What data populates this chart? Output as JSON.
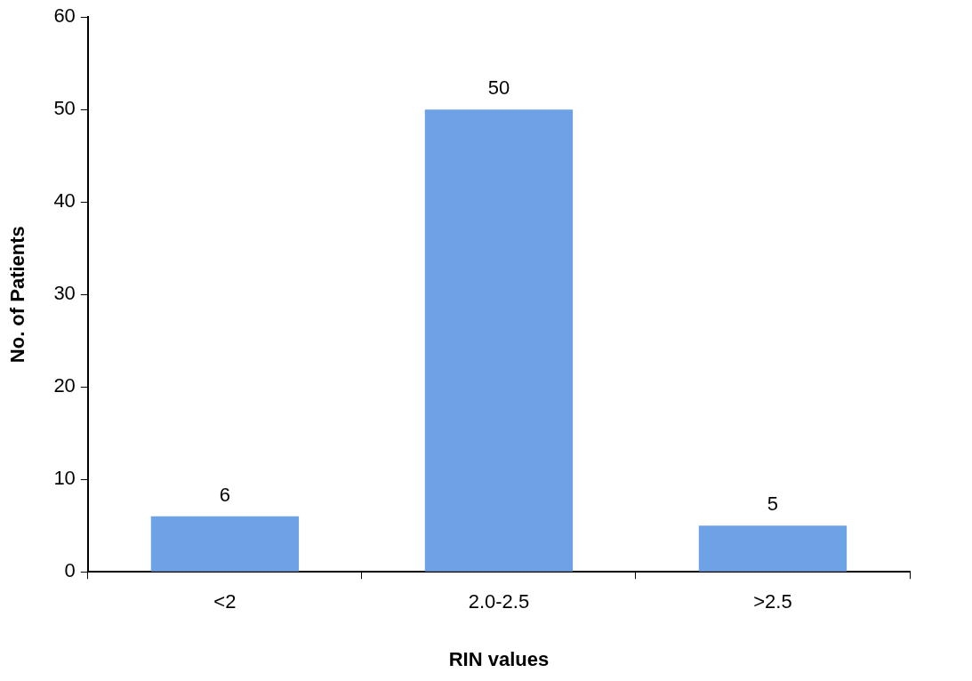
{
  "chart_data": {
    "type": "bar",
    "xlabel": "RIN values",
    "ylabel": "No. of Patients",
    "categories": [
      "<2",
      "2.0-2.5",
      ">2.5"
    ],
    "values": [
      6,
      50,
      5
    ],
    "color": "#6ea2e6",
    "ylim": [
      0,
      60
    ],
    "yticks": [
      0,
      10,
      20,
      30,
      40,
      50,
      60
    ],
    "grid": false,
    "data_labels": true,
    "legend": false
  }
}
